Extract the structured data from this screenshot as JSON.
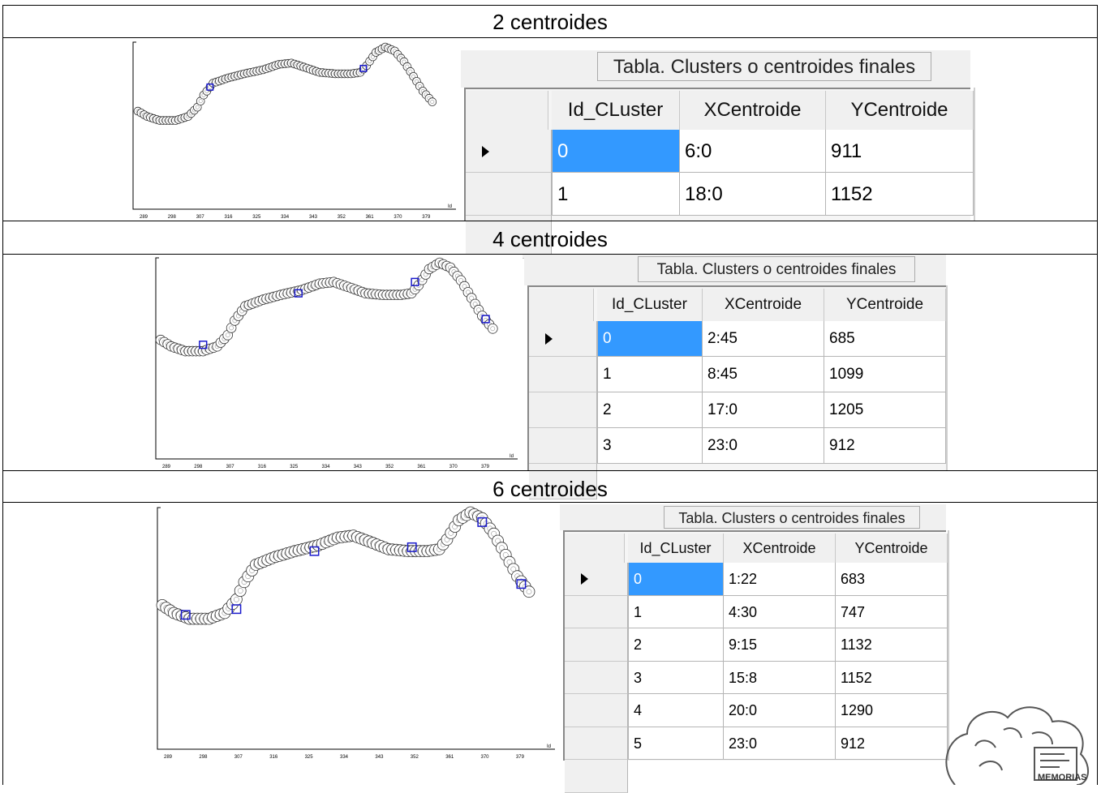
{
  "sections": [
    {
      "heading": "2 centroides",
      "caption": "Tabla. Clusters o centroides finales",
      "columns": [
        "Id_CLuster",
        "XCentroide",
        "YCentroide"
      ],
      "rows": [
        [
          "0",
          "6:0",
          "911"
        ],
        [
          "1",
          "18:0",
          "1152"
        ]
      ],
      "x_ticks": [
        "289",
        "298",
        "307",
        "316",
        "325",
        "334",
        "343",
        "352",
        "361",
        "370",
        "379"
      ],
      "axis_label": "Id"
    },
    {
      "heading": "4 centroides",
      "caption": "Tabla. Clusters o centroides finales",
      "columns": [
        "Id_CLuster",
        "XCentroide",
        "YCentroide"
      ],
      "rows": [
        [
          "0",
          "2:45",
          "685"
        ],
        [
          "1",
          "8:45",
          "1099"
        ],
        [
          "2",
          "17:0",
          "1205"
        ],
        [
          "3",
          "23:0",
          "912"
        ]
      ],
      "x_ticks": [
        "289",
        "298",
        "307",
        "316",
        "325",
        "334",
        "343",
        "352",
        "361",
        "370",
        "379"
      ],
      "axis_label": "Id"
    },
    {
      "heading": "6 centroides",
      "caption": "Tabla. Clusters o centroides finales",
      "columns": [
        "Id_CLuster",
        "XCentroide",
        "YCentroide"
      ],
      "rows": [
        [
          "0",
          "1:22",
          "683"
        ],
        [
          "1",
          "4:30",
          "747"
        ],
        [
          "2",
          "9:15",
          "1132"
        ],
        [
          "3",
          "15:8",
          "1152"
        ],
        [
          "4",
          "20:0",
          "1290"
        ],
        [
          "5",
          "23:0",
          "912"
        ]
      ],
      "x_ticks": [
        "289",
        "298",
        "307",
        "316",
        "325",
        "334",
        "343",
        "352",
        "361",
        "370",
        "379"
      ],
      "axis_label": "Id"
    }
  ],
  "logo_text": "MEMORIAS",
  "colors": {
    "selection": "#3399ff",
    "centroid": "#1a1acc",
    "grid_bg": "#f0f0f0"
  }
}
